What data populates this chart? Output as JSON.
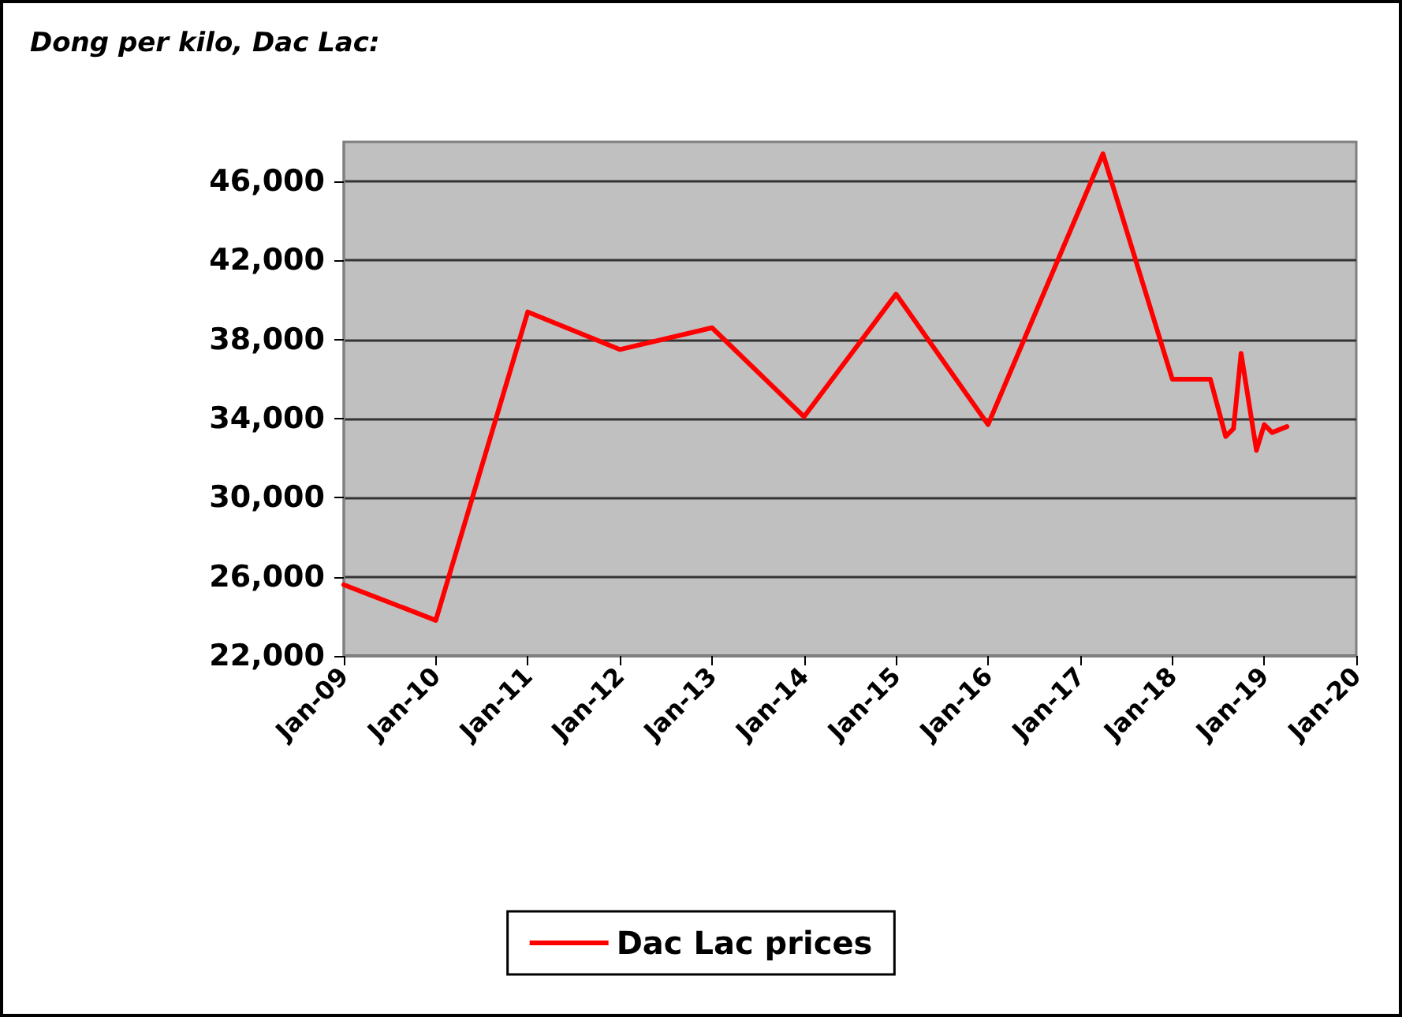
{
  "chart_data": {
    "type": "line",
    "title": "Dong per kilo, Dac Lac:",
    "x": [
      "2009-01",
      "2010-01",
      "2011-01",
      "2012-01",
      "2013-01",
      "2014-01",
      "2015-01",
      "2016-01",
      "2017-04",
      "2018-01",
      "2018-06",
      "2018-08",
      "2018-09",
      "2018-10",
      "2018-12",
      "2019-01",
      "2019-02",
      "2019-04"
    ],
    "series": [
      {
        "name": "Dac Lac prices",
        "color": "#ff0000",
        "values": [
          25600,
          23800,
          39400,
          37500,
          38600,
          34100,
          40300,
          33700,
          47400,
          36000,
          36000,
          33100,
          33500,
          37300,
          32400,
          33700,
          33300,
          33600
        ]
      }
    ],
    "xlim": [
      "2009-01",
      "2020-01"
    ],
    "xticks": [
      {
        "value": "2009-01",
        "label": "Jan-09"
      },
      {
        "value": "2010-01",
        "label": "Jan-10"
      },
      {
        "value": "2011-01",
        "label": "Jan-11"
      },
      {
        "value": "2012-01",
        "label": "Jan-12"
      },
      {
        "value": "2013-01",
        "label": "Jan-13"
      },
      {
        "value": "2014-01",
        "label": "Jan-14"
      },
      {
        "value": "2015-01",
        "label": "Jan-15"
      },
      {
        "value": "2016-01",
        "label": "Jan-16"
      },
      {
        "value": "2017-01",
        "label": "Jan-17"
      },
      {
        "value": "2018-01",
        "label": "Jan-18"
      },
      {
        "value": "2019-01",
        "label": "Jan-19"
      },
      {
        "value": "2020-01",
        "label": "Jan-20"
      }
    ],
    "ylim": [
      22000,
      48000
    ],
    "yticks": [
      {
        "value": 22000,
        "label": "22,000"
      },
      {
        "value": 26000,
        "label": "26,000"
      },
      {
        "value": 30000,
        "label": "30,000"
      },
      {
        "value": 34000,
        "label": "34,000"
      },
      {
        "value": 38000,
        "label": "38,000"
      },
      {
        "value": 42000,
        "label": "42,000"
      },
      {
        "value": 46000,
        "label": "46,000"
      }
    ],
    "grid": "y",
    "legend": "bottom",
    "marker": "none",
    "line_style": "solid"
  }
}
